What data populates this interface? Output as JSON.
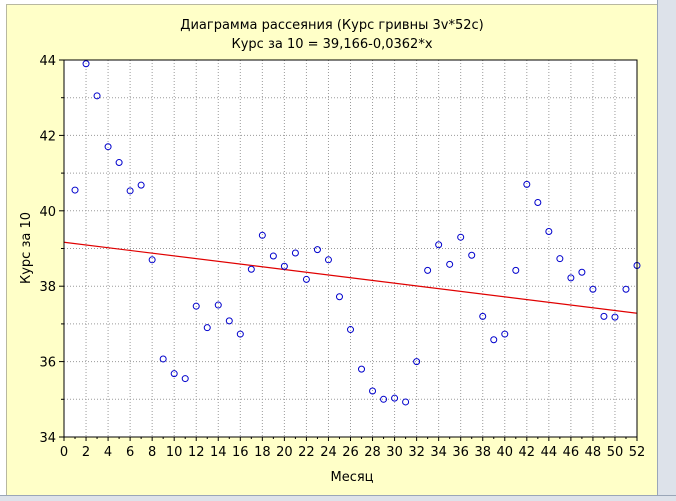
{
  "chart_data": {
    "type": "scatter",
    "title": "Диаграмма рассеяния (Курс гривны 3v*52c)",
    "subtitle": "Курс за 10 = 39,166-0,0362*x",
    "xlabel": "Месяц",
    "ylabel": "Курс за 10",
    "xlim": [
      0,
      52
    ],
    "ylim": [
      34,
      44
    ],
    "x_ticks": [
      "0",
      "2",
      "4",
      "6",
      "8",
      "10",
      "12",
      "14",
      "16",
      "18",
      "20",
      "22",
      "24",
      "26",
      "28",
      "30",
      "32",
      "34",
      "36",
      "38",
      "40",
      "42",
      "44",
      "46",
      "48",
      "50",
      "52"
    ],
    "y_ticks": [
      "34",
      "36",
      "38",
      "40",
      "42",
      "44"
    ],
    "grid": true,
    "regression": {
      "intercept": 39.166,
      "slope": -0.0362,
      "color": "#e00000"
    },
    "point_color": "#0000cc",
    "points": [
      [
        1,
        40.55
      ],
      [
        2,
        43.9
      ],
      [
        3,
        43.05
      ],
      [
        4,
        41.7
      ],
      [
        5,
        41.28
      ],
      [
        6,
        40.53
      ],
      [
        7,
        40.68
      ],
      [
        8,
        38.7
      ],
      [
        9,
        36.07
      ],
      [
        10,
        35.68
      ],
      [
        11,
        35.55
      ],
      [
        12,
        37.47
      ],
      [
        13,
        36.9
      ],
      [
        14,
        37.5
      ],
      [
        15,
        37.08
      ],
      [
        16,
        36.73
      ],
      [
        17,
        38.45
      ],
      [
        18,
        39.35
      ],
      [
        19,
        38.8
      ],
      [
        20,
        38.53
      ],
      [
        21,
        38.88
      ],
      [
        22,
        38.18
      ],
      [
        23,
        38.97
      ],
      [
        24,
        38.7
      ],
      [
        25,
        37.72
      ],
      [
        26,
        36.85
      ],
      [
        27,
        35.8
      ],
      [
        28,
        35.22
      ],
      [
        29,
        35.0
      ],
      [
        30,
        35.03
      ],
      [
        31,
        34.93
      ],
      [
        32,
        36.0
      ],
      [
        33,
        38.42
      ],
      [
        34,
        39.1
      ],
      [
        35,
        38.58
      ],
      [
        36,
        39.3
      ],
      [
        37,
        38.82
      ],
      [
        38,
        37.2
      ],
      [
        39,
        36.58
      ],
      [
        40,
        36.73
      ],
      [
        41,
        38.42
      ],
      [
        42,
        40.7
      ],
      [
        43,
        40.22
      ],
      [
        44,
        39.45
      ],
      [
        45,
        38.73
      ],
      [
        46,
        38.22
      ],
      [
        47,
        38.37
      ],
      [
        48,
        37.92
      ],
      [
        49,
        37.2
      ],
      [
        50,
        37.18
      ],
      [
        51,
        37.92
      ],
      [
        52,
        38.55
      ]
    ]
  }
}
